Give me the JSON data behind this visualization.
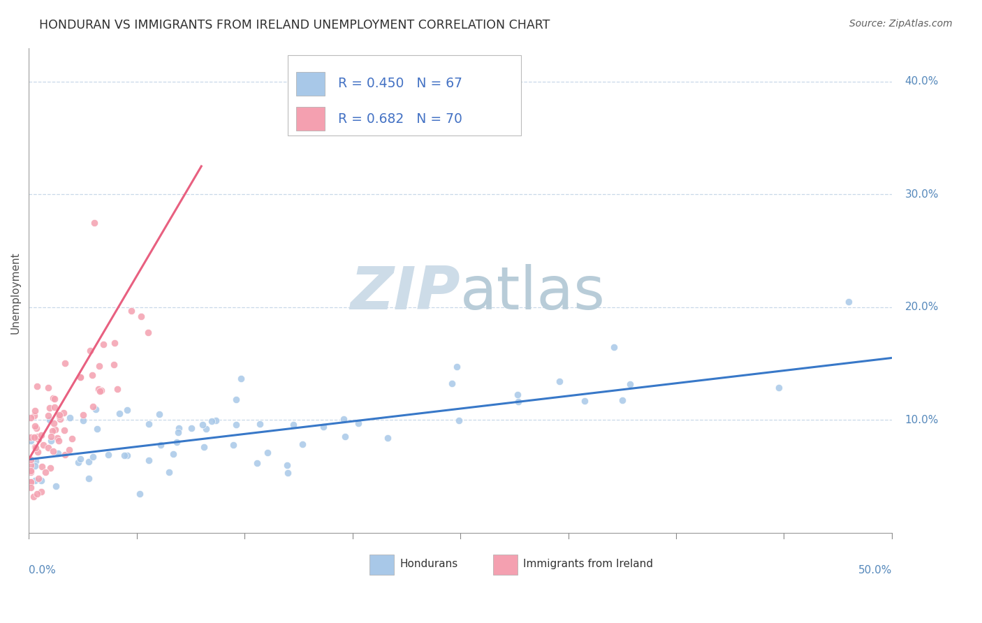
{
  "title": "HONDURAN VS IMMIGRANTS FROM IRELAND UNEMPLOYMENT CORRELATION CHART",
  "source": "Source: ZipAtlas.com",
  "ylabel": "Unemployment",
  "xlim": [
    0,
    0.5
  ],
  "ylim": [
    -0.005,
    0.43
  ],
  "blue_color": "#a8c8e8",
  "pink_color": "#f4a0b0",
  "trend_blue_color": "#3878c8",
  "trend_pink_color": "#e86080",
  "background": "#ffffff",
  "grid_color": "#c8d8e8",
  "watermark_zip_color": "#d0e4f0",
  "watermark_atlas_color": "#c0d0e0",
  "legend_text_color": "#4472c4",
  "title_color": "#303030",
  "source_color": "#606060",
  "axis_label_color": "#5588bb",
  "ylabel_color": "#505050",
  "blue_trend_x0": 0.0,
  "blue_trend_y0": 0.065,
  "blue_trend_x1": 0.5,
  "blue_trend_y1": 0.155,
  "pink_trend_x0": 0.0,
  "pink_trend_y0": 0.065,
  "pink_trend_x1": 0.1,
  "pink_trend_y1": 0.325
}
